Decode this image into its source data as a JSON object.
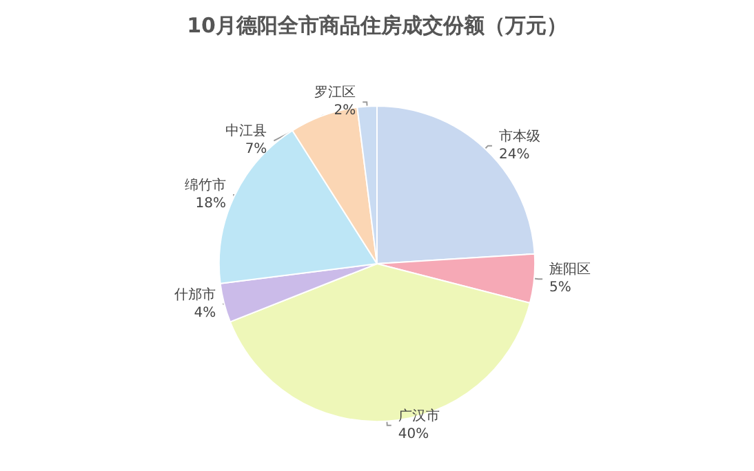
{
  "chart_data": {
    "type": "pie",
    "title": "10月德阳全市商品住房成交份额（万元）",
    "categories": [
      "市本级",
      "旌阳区",
      "广汉市",
      "什邡市",
      "绵竹市",
      "中江县",
      "罗江区"
    ],
    "values": [
      24,
      5,
      40,
      4,
      18,
      7,
      2
    ],
    "value_labels": [
      "24%",
      "5%",
      "40%",
      "4%",
      "18%",
      "7%",
      "2%"
    ],
    "colors": [
      "#c8d8f0",
      "#f6a9b6",
      "#eef7b8",
      "#cbbbe9",
      "#bde6f6",
      "#fbd6b4",
      "#c9dbf2"
    ],
    "legend": false
  }
}
